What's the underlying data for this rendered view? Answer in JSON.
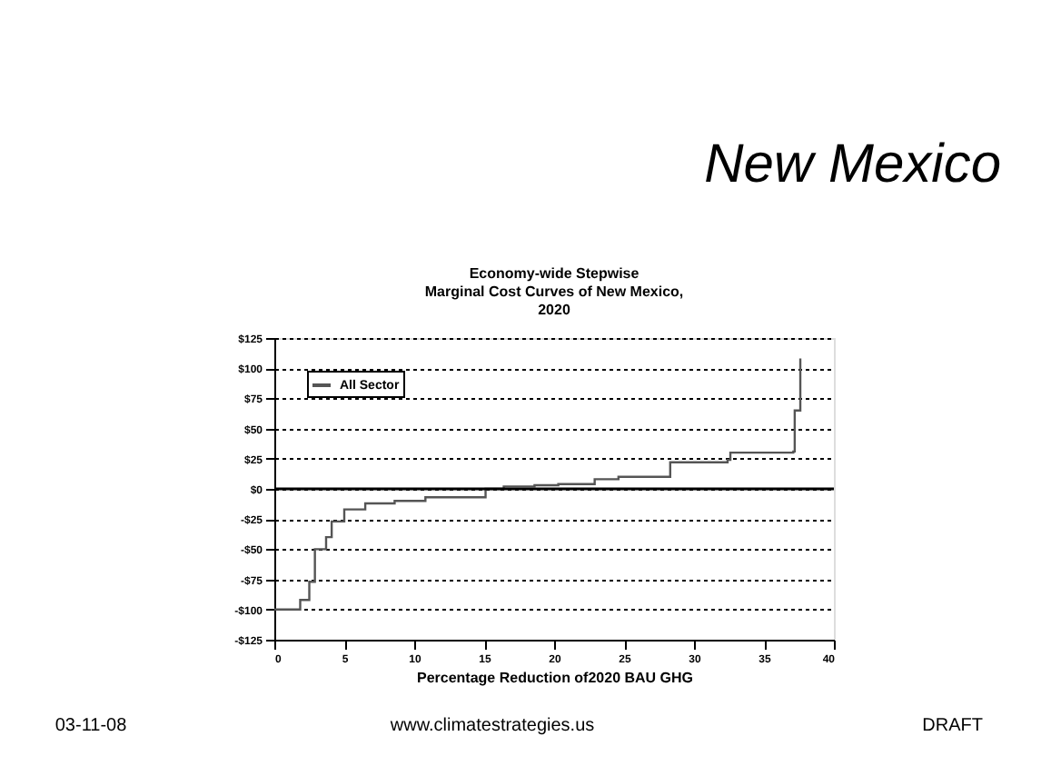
{
  "chart_data": {
    "type": "step",
    "title": "New Mexico",
    "subtitle": [
      "Economy-wide Stepwise",
      "Marginal Cost Curves of New Mexico,",
      "2020"
    ],
    "xlabel": "Percentage Reduction of2020 BAU GHG",
    "x": [
      0,
      1.85,
      2.5,
      2.9,
      3.7,
      4.1,
      5.0,
      6.5,
      8.6,
      10.8,
      15.1,
      16.4,
      18.6,
      20.3,
      22.9,
      24.6,
      28.1,
      28.3,
      32.4,
      32.6,
      37.1,
      37.2,
      37.6
    ],
    "series": [
      {
        "name": "All Sector",
        "color": "#555555",
        "values": [
          -100,
          -92,
          -77,
          -50,
          -40,
          -27,
          -17,
          -12,
          -10,
          -7,
          0,
          2,
          3,
          4,
          8,
          10,
          10,
          22,
          24,
          30,
          31,
          65,
          108
        ]
      }
    ],
    "xlim": [
      0,
      40
    ],
    "xticks": [
      0,
      5,
      10,
      15,
      20,
      25,
      30,
      35,
      40
    ],
    "ylim": [
      -125,
      125
    ],
    "yticks": [
      {
        "value": 125,
        "label": "$125"
      },
      {
        "value": 100,
        "label": "$100"
      },
      {
        "value": 75,
        "label": "$75"
      },
      {
        "value": 50,
        "label": "$50"
      },
      {
        "value": 25,
        "label": "$25"
      },
      {
        "value": 0,
        "label": "$0"
      },
      {
        "value": -25,
        "label": "-$25"
      },
      {
        "value": -50,
        "label": "-$50"
      },
      {
        "value": -75,
        "label": "-$75"
      },
      {
        "value": -100,
        "label": "-$100"
      },
      {
        "value": -125,
        "label": "-$125"
      }
    ],
    "ref_lines": [
      {
        "axis": "y",
        "value": 0,
        "label": null,
        "color": "#000000"
      }
    ],
    "grid": "y",
    "legend": "top left",
    "line_style": "solid",
    "marker": "none",
    "annotations": [
      "03-11-08",
      "www.climatestrategies.us",
      "DRAFT"
    ]
  }
}
